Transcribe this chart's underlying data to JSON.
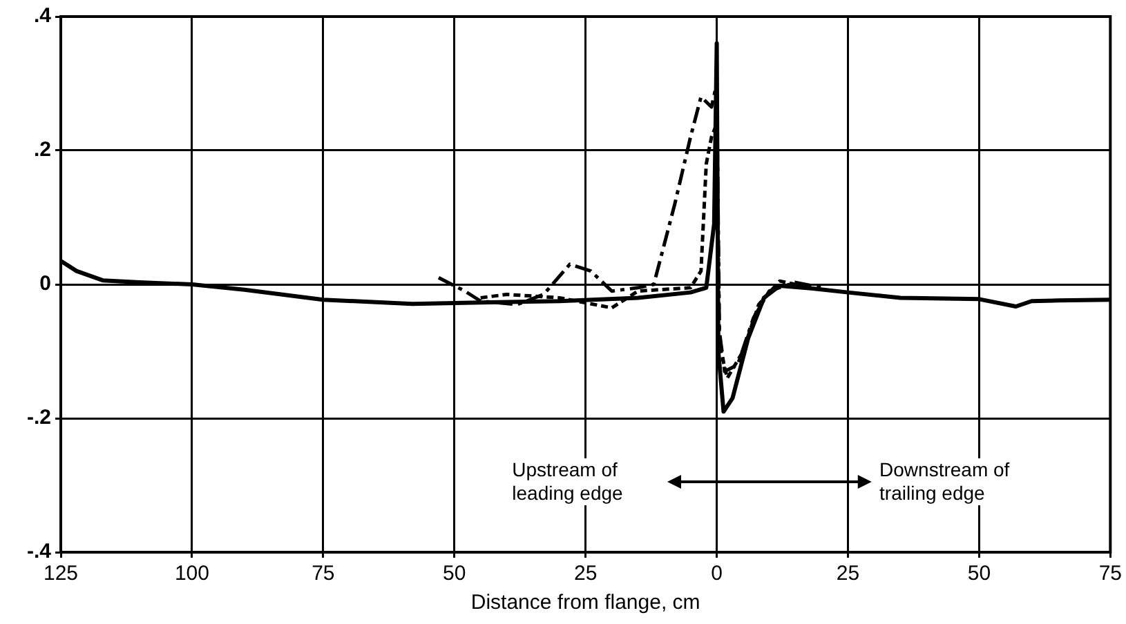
{
  "chart_data": {
    "type": "line",
    "xlabel": "Distance from flange, cm",
    "xlim": [
      -125,
      75
    ],
    "xticks": [
      {
        "value": -125,
        "label": "125"
      },
      {
        "value": -100,
        "label": "100"
      },
      {
        "value": -75,
        "label": "75"
      },
      {
        "value": -50,
        "label": "50"
      },
      {
        "value": -25,
        "label": "25"
      },
      0,
      25,
      50,
      75
    ],
    "ylim": [
      -0.4,
      0.4
    ],
    "yticks": [
      {
        "value": -0.4,
        "label": "-.4"
      },
      {
        "value": -0.2,
        "label": "-.2"
      },
      0,
      {
        "value": 0.2,
        "label": ".2"
      },
      {
        "value": 0.4,
        "label": ".4"
      }
    ],
    "grid": true,
    "legend": false,
    "marker": "none",
    "series": [
      {
        "color": "#000000",
        "line_style": "solid",
        "x": [
          -125,
          -122,
          -117,
          -110,
          -100,
          -90,
          -75,
          -58,
          -45,
          -30,
          -15,
          -5,
          -2,
          -0.5,
          0,
          0.3,
          1.3,
          3,
          6,
          9,
          12,
          18,
          25,
          35,
          50,
          57,
          60,
          65,
          75
        ],
        "values": [
          0.035,
          0.02,
          0.006,
          0.003,
          0,
          -0.008,
          -0.023,
          -0.029,
          -0.027,
          -0.025,
          -0.02,
          -0.012,
          -0.005,
          0.09,
          0.36,
          -0.1,
          -0.19,
          -0.17,
          -0.08,
          -0.02,
          -0.002,
          -0.006,
          -0.012,
          -0.02,
          -0.022,
          -0.033,
          -0.025,
          -0.024,
          -0.023
        ]
      },
      {
        "color": "#000000",
        "line_style": "dashed",
        "x": [
          -53,
          -48,
          -45,
          -38,
          -33,
          -28,
          -24,
          -20,
          -15,
          -12,
          -8,
          -5,
          -3,
          -1,
          0,
          0.5,
          1.5,
          4,
          7,
          10,
          15,
          20
        ],
        "values": [
          0.01,
          -0.01,
          -0.025,
          -0.03,
          -0.015,
          0.03,
          0.02,
          -0.01,
          -0.005,
          0,
          0.12,
          0.22,
          0.28,
          0.265,
          0.3,
          -0.07,
          -0.13,
          -0.12,
          -0.05,
          -0.01,
          0.003,
          -0.005
        ]
      },
      {
        "color": "#000000",
        "line_style": "dotted",
        "x": [
          -45,
          -40,
          -30,
          -20,
          -15,
          -5,
          -3,
          -2,
          -1,
          0,
          0.5,
          2,
          5,
          8,
          12,
          18
        ],
        "values": [
          -0.02,
          -0.015,
          -0.02,
          -0.035,
          -0.01,
          -0.005,
          0.02,
          0.18,
          0.22,
          0.24,
          -0.09,
          -0.14,
          -0.1,
          -0.03,
          0.005,
          -0.005
        ]
      }
    ],
    "annotations": [
      "Upstream of leading edge",
      "Downstream of trailing edge"
    ]
  }
}
